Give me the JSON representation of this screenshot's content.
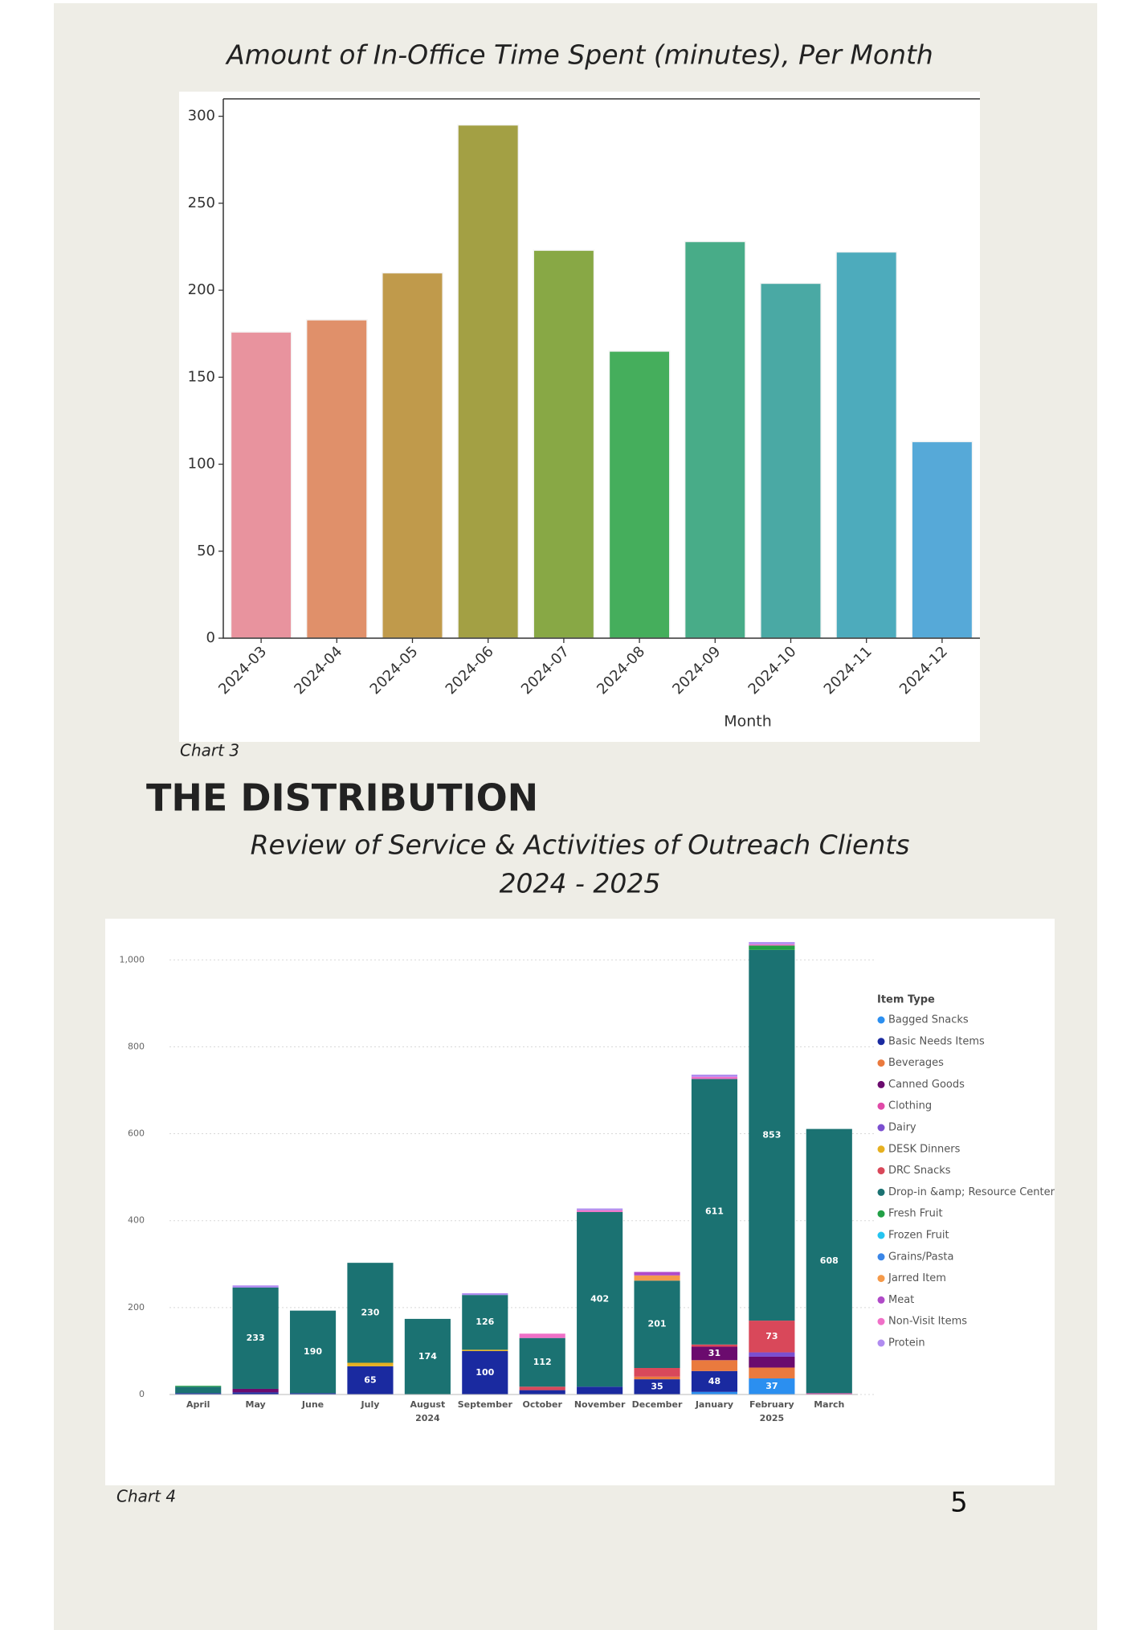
{
  "heading": "THE DISTRIBUTION",
  "page_number": "5",
  "chart_data": [
    {
      "type": "bar",
      "title": "Amount of In-Office Time Spent (minutes), Per Month",
      "caption": "Chart 3",
      "xlabel": "Month",
      "categories": [
        "2024-03",
        "2024-04",
        "2024-05",
        "2024-06",
        "2024-07",
        "2024-08",
        "2024-09",
        "2024-10",
        "2024-11",
        "2024-12"
      ],
      "values": [
        176,
        183,
        210,
        295,
        223,
        165,
        228,
        204,
        222,
        113
      ],
      "colors": [
        "#e8939e",
        "#e0906a",
        "#c09a4b",
        "#a3a044",
        "#88a845",
        "#45ae5c",
        "#48ac88",
        "#4aa9a4",
        "#4dabbc",
        "#56a9d8"
      ],
      "ylim": [
        0,
        310
      ],
      "yticks": [
        0,
        50,
        100,
        150,
        200,
        250,
        300
      ]
    },
    {
      "type": "stacked_bar",
      "title": [
        "Review of Service & Activities of Outreach Clients",
        "2024 - 2025"
      ],
      "caption": "Chart 4",
      "categories": [
        "April",
        "May",
        "June",
        "July",
        "August",
        "September",
        "October",
        "November",
        "December",
        "January",
        "February",
        "March"
      ],
      "year_labels": [
        null,
        null,
        null,
        null,
        "2024",
        null,
        null,
        null,
        null,
        null,
        "2025",
        null
      ],
      "ylim": [
        0,
        1080
      ],
      "yticks": [
        0,
        200,
        400,
        600,
        800,
        {
          "value": 1000,
          "label": "1,000"
        }
      ],
      "grid": true,
      "legend": "right",
      "legend_title": "Item Type",
      "series": [
        {
          "name": "Bagged Snacks",
          "color": "#2b8ff0",
          "values": [
            0,
            0,
            0,
            0,
            0,
            0,
            0,
            0,
            0,
            6,
            37,
            0
          ]
        },
        {
          "name": "Basic Needs Items",
          "color": "#1a2aa0",
          "values": [
            3,
            5,
            3,
            65,
            0,
            100,
            10,
            18,
            35,
            48,
            0,
            0
          ]
        },
        {
          "name": "Beverages",
          "color": "#ea7a3e",
          "values": [
            0,
            0,
            0,
            0,
            0,
            0,
            0,
            0,
            6,
            25,
            25,
            0
          ]
        },
        {
          "name": "Canned Goods",
          "color": "#6b0b6e",
          "values": [
            0,
            8,
            0,
            0,
            0,
            0,
            0,
            0,
            0,
            31,
            25,
            0
          ]
        },
        {
          "name": "Clothing",
          "color": "#e04aa8",
          "values": [
            0,
            0,
            0,
            0,
            0,
            0,
            0,
            0,
            0,
            0,
            0,
            3
          ]
        },
        {
          "name": "Dairy",
          "color": "#7b4fd0",
          "values": [
            0,
            0,
            0,
            0,
            0,
            0,
            0,
            0,
            0,
            0,
            10,
            0
          ]
        },
        {
          "name": "DESK Dinners",
          "color": "#e6b020",
          "values": [
            0,
            0,
            0,
            8,
            0,
            3,
            0,
            0,
            0,
            0,
            0,
            0
          ]
        },
        {
          "name": "DRC Snacks",
          "color": "#d9485a",
          "values": [
            0,
            0,
            0,
            0,
            0,
            0,
            8,
            0,
            20,
            5,
            73,
            0
          ]
        },
        {
          "name": "Drop-in &amp; Resource Center",
          "color": "#1b7272",
          "values": [
            15,
            233,
            190,
            230,
            174,
            126,
            112,
            402,
            201,
            611,
            853,
            608
          ]
        },
        {
          "name": "Fresh Fruit",
          "color": "#22a046",
          "values": [
            2,
            0,
            0,
            0,
            0,
            0,
            0,
            0,
            0,
            0,
            10,
            0
          ]
        },
        {
          "name": "Frozen Fruit",
          "color": "#24c4f0",
          "values": [
            0,
            0,
            0,
            0,
            0,
            0,
            0,
            0,
            0,
            0,
            0,
            0
          ]
        },
        {
          "name": "Grains/Pasta",
          "color": "#3a86e8",
          "values": [
            0,
            0,
            0,
            0,
            0,
            0,
            0,
            0,
            0,
            0,
            0,
            0
          ]
        },
        {
          "name": "Jarred Item",
          "color": "#f59a4a",
          "values": [
            0,
            0,
            0,
            0,
            0,
            0,
            0,
            0,
            12,
            0,
            0,
            0
          ]
        },
        {
          "name": "Meat",
          "color": "#b04ac8",
          "values": [
            0,
            0,
            0,
            0,
            0,
            0,
            0,
            0,
            8,
            0,
            0,
            0
          ]
        },
        {
          "name": "Non-Visit Items",
          "color": "#f070c8",
          "values": [
            0,
            0,
            0,
            0,
            0,
            0,
            10,
            4,
            0,
            5,
            3,
            0
          ]
        },
        {
          "name": "Protein",
          "color": "#b08cf0",
          "values": [
            0,
            5,
            0,
            0,
            0,
            4,
            0,
            4,
            0,
            5,
            5,
            0
          ]
        }
      ]
    }
  ]
}
